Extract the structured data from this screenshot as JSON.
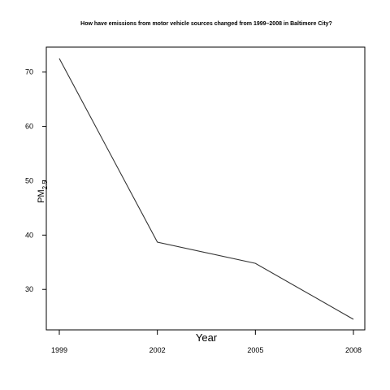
{
  "chart_data": {
    "type": "line",
    "title": "How have emissions from motor vehicle sources changed from 1999–2008 in Baltimore City?",
    "xlabel": "Year",
    "ylabel": "PM",
    "ylabel_sub": "2.5",
    "x": [
      1999,
      2002,
      2005,
      2008
    ],
    "x_tick_labels": [
      "1999",
      "2002",
      "2005",
      "2008"
    ],
    "y_ticks": [
      30,
      40,
      50,
      60,
      70
    ],
    "y_tick_labels": [
      "30",
      "40",
      "50",
      "60",
      "70"
    ],
    "xlim": [
      1999,
      2008
    ],
    "ylim": [
      24.5,
      72.5
    ],
    "series": [
      {
        "values": [
          72.5,
          38.7,
          34.8,
          24.5
        ]
      }
    ],
    "grid": false,
    "legend": "none",
    "line_color": "#333333"
  }
}
